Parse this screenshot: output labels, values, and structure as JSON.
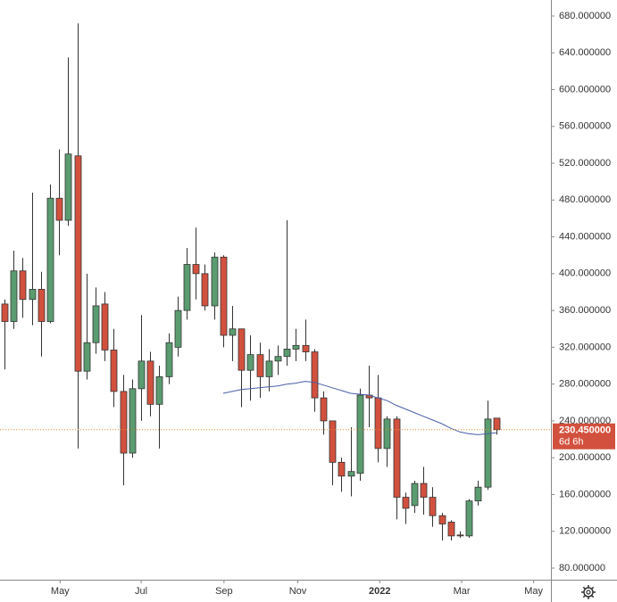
{
  "chart_data": {
    "type": "candlestick",
    "open": [
      367,
      348,
      403,
      372,
      383,
      348,
      482,
      458,
      528,
      294,
      325,
      367,
      317,
      272,
      205,
      275,
      305,
      258,
      288,
      320,
      360,
      410,
      400,
      365,
      418,
      333,
      340,
      295,
      312,
      288,
      305,
      310,
      318,
      322,
      315,
      265,
      240,
      195,
      180,
      183,
      268,
      265,
      210,
      242,
      157,
      148,
      172,
      157,
      137,
      130,
      116,
      115,
      153,
      168,
      243
    ],
    "high": [
      372,
      425,
      417,
      488,
      402,
      497,
      535,
      635,
      672,
      400,
      385,
      380,
      340,
      290,
      285,
      355,
      315,
      300,
      335,
      375,
      428,
      450,
      410,
      423,
      420,
      365,
      340,
      333,
      325,
      318,
      322,
      458,
      340,
      350,
      318,
      272,
      240,
      200,
      233,
      275,
      300,
      290,
      245,
      245,
      162,
      175,
      190,
      168,
      140,
      132,
      120,
      155,
      175,
      262,
      243
    ],
    "low": [
      296,
      340,
      352,
      344,
      310,
      346,
      420,
      452,
      210,
      285,
      313,
      305,
      255,
      170,
      200,
      240,
      245,
      210,
      280,
      310,
      350,
      372,
      360,
      350,
      320,
      305,
      255,
      262,
      265,
      272,
      290,
      300,
      305,
      305,
      250,
      225,
      170,
      163,
      158,
      175,
      233,
      195,
      190,
      133,
      128,
      140,
      138,
      125,
      110,
      110,
      113,
      113,
      148,
      165,
      225
    ],
    "close": [
      348,
      403,
      372,
      383,
      348,
      482,
      458,
      530,
      294,
      325,
      365,
      317,
      272,
      205,
      275,
      305,
      258,
      288,
      325,
      360,
      410,
      400,
      365,
      418,
      333,
      340,
      295,
      312,
      288,
      305,
      310,
      318,
      322,
      315,
      265,
      240,
      195,
      180,
      185,
      268,
      265,
      210,
      242,
      157,
      145,
      172,
      157,
      137,
      128,
      115,
      115,
      153,
      168,
      242,
      230.45
    ],
    "up_color": "#5a9c70",
    "down_color": "#d2513e",
    "moving_average": {
      "color": "#4a5fa8",
      "values": [
        null,
        null,
        null,
        null,
        null,
        null,
        null,
        null,
        null,
        null,
        null,
        null,
        null,
        null,
        null,
        null,
        null,
        null,
        null,
        null,
        null,
        null,
        null,
        null,
        270,
        272,
        274,
        275,
        276,
        277,
        278,
        280,
        281,
        283,
        282,
        279,
        276,
        273,
        270,
        269,
        268,
        265,
        262,
        257,
        253,
        249,
        245,
        241,
        237,
        232,
        228,
        226,
        225,
        226,
        227
      ]
    },
    "last_price": {
      "value": 230.45,
      "label": "230.450000",
      "color": "#d2513e"
    },
    "countdown": "6d 6h",
    "xlim": [
      -0.5,
      60
    ],
    "xticks": [
      {
        "value": 6.1,
        "label": "May"
      },
      {
        "value": 15,
        "label": "Jul"
      },
      {
        "value": 24.1,
        "label": "Sep"
      },
      {
        "value": 32.2,
        "label": "Nov"
      },
      {
        "value": 41.2,
        "label": "2022"
      },
      {
        "value": 50.2,
        "label": "Mar"
      },
      {
        "value": 58.1,
        "label": "May"
      }
    ],
    "ylim": [
      67.4,
      697.4
    ],
    "yticks": [
      {
        "value": 80,
        "label": "80.000000"
      },
      {
        "value": 120,
        "label": "120.000000"
      },
      {
        "value": 160,
        "label": "160.000000"
      },
      {
        "value": 200,
        "label": "200.000000"
      },
      {
        "value": 240,
        "label": "240.000000"
      },
      {
        "value": 280,
        "label": "280.000000"
      },
      {
        "value": 320,
        "label": "320.000000"
      },
      {
        "value": 360,
        "label": "360.000000"
      },
      {
        "value": 400,
        "label": "400.000000"
      },
      {
        "value": 440,
        "label": "440.000000"
      },
      {
        "value": 480,
        "label": "480.000000"
      },
      {
        "value": 520,
        "label": "520.000000"
      },
      {
        "value": 560,
        "label": "560.000000"
      },
      {
        "value": 600,
        "label": "600.000000"
      },
      {
        "value": 640,
        "label": "640.000000"
      },
      {
        "value": 680,
        "label": "680.000000"
      }
    ]
  }
}
